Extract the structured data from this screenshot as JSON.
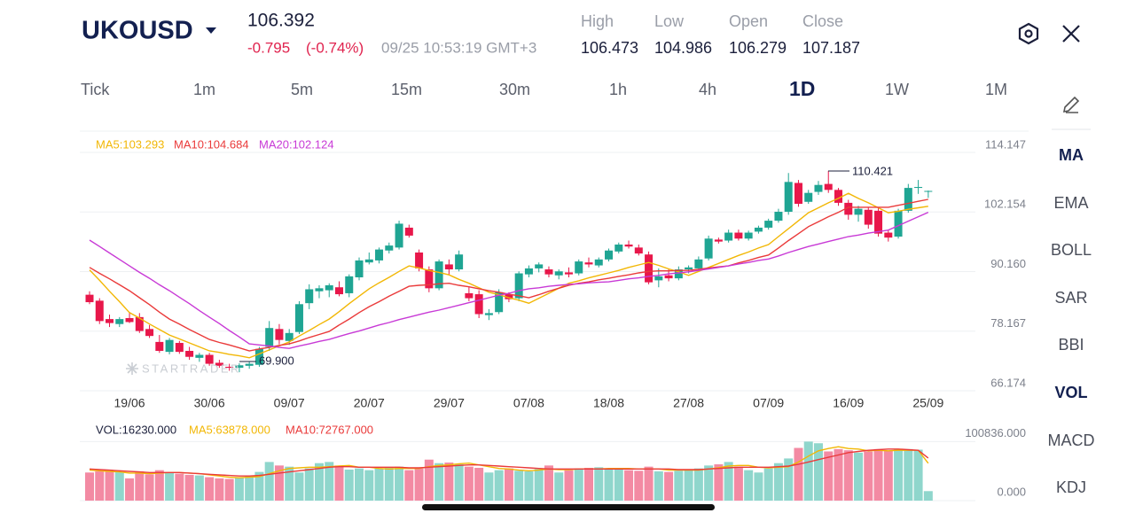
{
  "header": {
    "symbol": "UKOUSD",
    "price": "106.392",
    "change": "-0.795",
    "change_pct": "(-0.74%)",
    "time": "09/25 10:53:19 GMT+3",
    "stats": [
      {
        "label": "High",
        "value": "106.473"
      },
      {
        "label": "Low",
        "value": "104.986"
      },
      {
        "label": "Open",
        "value": "106.279"
      },
      {
        "label": "Close",
        "value": "107.187"
      }
    ]
  },
  "timeframes": [
    {
      "label": "Tick",
      "selected": false
    },
    {
      "label": "1m",
      "selected": false
    },
    {
      "label": "5m",
      "selected": false
    },
    {
      "label": "15m",
      "selected": false
    },
    {
      "label": "30m",
      "selected": false
    },
    {
      "label": "1h",
      "selected": false
    },
    {
      "label": "4h",
      "selected": false
    },
    {
      "label": "1D",
      "selected": true
    },
    {
      "label": "1W",
      "selected": false
    },
    {
      "label": "1M",
      "selected": false
    }
  ],
  "indicators": [
    {
      "label": "MA",
      "selected": true
    },
    {
      "label": "EMA",
      "selected": false
    },
    {
      "label": "BOLL",
      "selected": false
    },
    {
      "label": "SAR",
      "selected": false
    },
    {
      "label": "BBI",
      "selected": false
    },
    {
      "label": "VOL",
      "selected": true
    },
    {
      "label": "MACD",
      "selected": false
    },
    {
      "label": "KDJ",
      "selected": false
    }
  ],
  "chart_data": [
    {
      "type": "candlestick",
      "categories": [
        null,
        null,
        null,
        null,
        "19/06",
        null,
        null,
        null,
        null,
        null,
        null,
        null,
        "30/06",
        null,
        null,
        null,
        null,
        null,
        null,
        null,
        "09/07",
        null,
        null,
        null,
        null,
        null,
        null,
        null,
        "20/07",
        null,
        null,
        null,
        null,
        null,
        null,
        null,
        "29/07",
        null,
        null,
        null,
        null,
        null,
        null,
        null,
        "07/08",
        null,
        null,
        null,
        null,
        null,
        null,
        null,
        "18/08",
        null,
        null,
        null,
        null,
        null,
        null,
        null,
        "27/08",
        null,
        null,
        null,
        null,
        null,
        null,
        null,
        "07/09",
        null,
        null,
        null,
        null,
        null,
        null,
        null,
        "16/09",
        null,
        null,
        null,
        null,
        null,
        null,
        null,
        "25/09"
      ],
      "open": [
        85.5,
        84.3,
        80.6,
        79.6,
        80.8,
        81.0,
        78.6,
        76.0,
        74.0,
        75.8,
        74.2,
        72.8,
        73.4,
        71.8,
        71.0,
        70.8,
        71.2,
        71.4,
        75.0,
        78.6,
        76.2,
        78.0,
        83.8,
        86.2,
        86.4,
        87.0,
        85.8,
        89.0,
        92.0,
        92.4,
        94.4,
        95.0,
        99.0,
        94.0,
        90.6,
        86.8,
        91.6,
        90.6,
        85.8,
        85.6,
        81.4,
        82.0,
        85.6,
        84.8,
        89.6,
        90.8,
        90.6,
        89.4,
        90.0,
        89.8,
        92.0,
        91.4,
        92.6,
        94.2,
        95.6,
        95.0,
        93.6,
        88.4,
        89.4,
        88.8,
        90.6,
        90.8,
        92.8,
        96.6,
        96.4,
        98.0,
        96.8,
        98.2,
        99.0,
        100.4,
        102.2,
        108.0,
        104.2,
        106.2,
        107.8,
        106.6,
        104.0,
        101.6,
        102.6,
        102.4,
        98.0,
        97.2,
        102.4,
        107.0,
        106.279
      ],
      "high": [
        86.2,
        84.8,
        81.5,
        81.0,
        82.0,
        81.8,
        79.4,
        77.4,
        76.8,
        76.2,
        75.0,
        73.8,
        73.8,
        72.4,
        71.6,
        71.7,
        72.0,
        75.0,
        80.2,
        79.6,
        78.6,
        84.2,
        87.6,
        87.4,
        87.8,
        88.2,
        89.6,
        93.0,
        94.0,
        95.0,
        96.0,
        100.4,
        99.6,
        94.6,
        91.2,
        92.6,
        92.6,
        94.4,
        87.0,
        86.4,
        82.6,
        86.6,
        86.0,
        90.2,
        91.4,
        92.0,
        91.2,
        90.6,
        91.0,
        92.6,
        93.0,
        93.0,
        94.8,
        96.0,
        96.4,
        95.6,
        94.2,
        90.8,
        90.6,
        91.2,
        91.4,
        93.2,
        97.4,
        97.0,
        98.6,
        98.6,
        98.4,
        99.4,
        100.8,
        102.8,
        110.0,
        108.6,
        106.6,
        108.4,
        110.421,
        107.0,
        104.6,
        103.4,
        103.0,
        103.0,
        98.6,
        102.8,
        107.8,
        108.6,
        106.473
      ],
      "low": [
        83.6,
        79.6,
        79.0,
        79.0,
        79.8,
        77.8,
        76.8,
        73.8,
        73.5,
        73.6,
        72.4,
        72.0,
        71.2,
        70.8,
        70.2,
        69.9,
        70.6,
        71.0,
        74.2,
        75.5,
        75.4,
        77.6,
        82.6,
        84.8,
        85.0,
        85.2,
        85.0,
        88.4,
        91.6,
        91.8,
        93.8,
        94.6,
        97.0,
        90.2,
        86.0,
        86.4,
        89.4,
        90.2,
        84.2,
        80.8,
        80.4,
        81.6,
        84.0,
        84.2,
        89.0,
        90.0,
        89.0,
        88.6,
        89.0,
        89.4,
        91.0,
        91.0,
        92.2,
        93.8,
        94.8,
        93.4,
        87.6,
        87.0,
        88.2,
        88.4,
        89.8,
        90.4,
        92.4,
        95.8,
        96.0,
        96.4,
        96.4,
        97.8,
        98.6,
        100.0,
        101.6,
        103.2,
        103.8,
        105.6,
        106.0,
        103.4,
        100.6,
        100.2,
        98.8,
        97.2,
        96.2,
        96.8,
        102.0,
        105.8,
        104.986
      ],
      "close": [
        84.0,
        80.2,
        79.8,
        80.6,
        80.0,
        78.2,
        77.2,
        74.2,
        76.4,
        74.0,
        73.0,
        73.4,
        71.6,
        71.2,
        70.8,
        71.3,
        71.6,
        74.6,
        78.8,
        76.4,
        77.8,
        83.6,
        86.6,
        86.8,
        87.4,
        85.6,
        89.2,
        92.4,
        92.6,
        94.6,
        95.4,
        99.8,
        97.4,
        90.8,
        86.8,
        92.2,
        90.6,
        93.6,
        84.8,
        81.6,
        81.8,
        86.0,
        84.6,
        89.8,
        90.8,
        91.6,
        89.6,
        90.2,
        89.6,
        92.2,
        91.6,
        92.6,
        94.4,
        95.6,
        95.2,
        93.8,
        88.0,
        89.2,
        88.8,
        90.6,
        91.0,
        92.6,
        96.8,
        96.2,
        98.0,
        96.8,
        98.0,
        99.0,
        100.4,
        102.2,
        108.2,
        103.8,
        106.0,
        107.6,
        106.6,
        104.0,
        101.6,
        102.8,
        99.6,
        97.8,
        97.0,
        102.4,
        107.0,
        107.187,
        106.392
      ],
      "up_color": "#1fa593",
      "down_color": "#e8174a",
      "series": [
        {
          "name": "MA5:103.293",
          "color": "#f2b705",
          "values": [
            90.5,
            88.4,
            86.2,
            84.1,
            81.9,
            80.8,
            79.6,
            78.5,
            77.4,
            76.6,
            75.8,
            75.0,
            74.2,
            73.9,
            73.5,
            73.2,
            72.8,
            73.6,
            74.4,
            75.2,
            76.0,
            77.2,
            78.3,
            79.5,
            80.6,
            82.1,
            83.7,
            85.2,
            86.7,
            87.9,
            89.0,
            90.2,
            91.3,
            90.9,
            90.4,
            90.0,
            89.5,
            88.6,
            87.8,
            86.9,
            86.0,
            85.5,
            84.9,
            84.4,
            83.8,
            84.8,
            85.8,
            86.8,
            87.8,
            88.3,
            88.9,
            89.4,
            89.9,
            90.4,
            91.0,
            91.5,
            92.0,
            91.4,
            90.7,
            90.1,
            89.4,
            90.2,
            91.0,
            91.8,
            92.6,
            93.4,
            94.1,
            94.9,
            95.6,
            97.2,
            98.8,
            100.4,
            102.0,
            103.0,
            104.0,
            104.9,
            105.9,
            104.9,
            104.0,
            103.0,
            102.0,
            102.3,
            102.7,
            103.0,
            103.3
          ]
        },
        {
          "name": "MA10:104.684",
          "color": "#ea3a3a",
          "values": [
            91.0,
            89.8,
            88.7,
            87.5,
            86.3,
            84.9,
            83.5,
            82.0,
            80.6,
            79.6,
            78.5,
            77.5,
            76.5,
            75.9,
            75.4,
            74.8,
            74.2,
            74.6,
            74.9,
            75.3,
            75.6,
            76.2,
            76.9,
            77.5,
            78.1,
            79.4,
            80.6,
            81.9,
            83.1,
            84.1,
            85.2,
            86.2,
            87.2,
            87.4,
            87.5,
            87.7,
            87.8,
            87.4,
            87.1,
            86.7,
            86.3,
            86.0,
            85.6,
            85.3,
            84.9,
            85.5,
            86.2,
            86.8,
            87.4,
            87.8,
            88.1,
            88.5,
            88.8,
            89.2,
            89.5,
            89.9,
            90.2,
            90.3,
            90.3,
            90.4,
            90.4,
            90.6,
            90.9,
            91.1,
            91.3,
            91.9,
            92.4,
            93.0,
            93.5,
            94.9,
            96.4,
            97.8,
            99.2,
            100.2,
            101.2,
            102.1,
            103.1,
            103.1,
            103.1,
            103.1,
            103.1,
            103.5,
            103.9,
            104.3,
            104.7
          ]
        },
        {
          "name": "MA20:102.124",
          "color": "#c83ad6",
          "values": [
            96.5,
            95.2,
            93.9,
            92.6,
            91.3,
            90.0,
            88.8,
            87.5,
            86.3,
            85.0,
            83.7,
            82.3,
            81.0,
            79.7,
            78.3,
            77.0,
            75.6,
            75.4,
            75.2,
            74.9,
            74.7,
            75.2,
            75.6,
            76.1,
            76.5,
            77.1,
            77.7,
            78.2,
            78.8,
            79.4,
            79.9,
            80.5,
            81.0,
            81.5,
            82.0,
            82.4,
            82.9,
            83.4,
            83.9,
            84.4,
            84.9,
            85.4,
            85.8,
            86.3,
            86.7,
            86.9,
            87.2,
            87.4,
            87.6,
            87.7,
            87.9,
            88.0,
            88.1,
            88.4,
            88.7,
            88.9,
            89.2,
            89.4,
            89.7,
            89.9,
            90.1,
            90.4,
            90.7,
            91.0,
            91.3,
            91.7,
            92.0,
            92.4,
            92.7,
            93.3,
            94.0,
            94.6,
            95.2,
            95.7,
            96.2,
            96.7,
            97.2,
            97.5,
            97.9,
            98.2,
            98.5,
            99.4,
            100.3,
            101.2,
            102.1
          ]
        }
      ],
      "ylim": [
        66.174,
        114.147
      ],
      "yticks": [
        114.147,
        102.154,
        {
          "value": 90.16,
          "label": "90.160"
        },
        78.167,
        66.174
      ],
      "grid": true,
      "annotations": [
        "110.421",
        "69.900"
      ],
      "watermark": "STARTRADER"
    },
    {
      "type": "bar",
      "label": "VOL:16230.000",
      "values": [
        48000,
        50000,
        51000,
        49000,
        38000,
        50000,
        45000,
        52000,
        48000,
        46000,
        44000,
        43000,
        40000,
        38000,
        37000,
        39000,
        42000,
        49000,
        66000,
        60000,
        58000,
        48000,
        55000,
        64000,
        66000,
        60000,
        53000,
        55000,
        52000,
        55000,
        57000,
        58000,
        52000,
        55000,
        70000,
        64000,
        65000,
        62000,
        58000,
        56000,
        48000,
        52000,
        55000,
        51000,
        50000,
        54000,
        60000,
        48000,
        52000,
        55000,
        56000,
        57000,
        55000,
        54000,
        52000,
        51000,
        58000,
        50000,
        49000,
        51000,
        53000,
        55000,
        60000,
        62000,
        66000,
        58000,
        52000,
        48000,
        55000,
        64000,
        72000,
        90000,
        100836,
        98000,
        84000,
        88000,
        86000,
        82000,
        84000,
        88000,
        85000,
        87000,
        88000,
        87000,
        16230
      ],
      "up_color": "#8fd6cc",
      "down_color": "#f38aa3",
      "series": [
        {
          "name": "MA5:63878.000",
          "color": "#f2b705",
          "values": [
            52000,
            51000,
            50000,
            49000,
            47000,
            47000,
            46000,
            47000,
            48000,
            48000,
            47000,
            46000,
            44000,
            42000,
            40000,
            39000,
            40000,
            41000,
            46000,
            51000,
            55000,
            56000,
            57000,
            57000,
            58000,
            59000,
            60000,
            57000,
            57000,
            55000,
            54000,
            55000,
            55000,
            55000,
            58000,
            60000,
            61000,
            63000,
            64000,
            61000,
            58000,
            55000,
            54000,
            52000,
            51000,
            52000,
            54000,
            53000,
            53000,
            54000,
            54000,
            54000,
            55000,
            55000,
            55000,
            54000,
            54000,
            54000,
            52000,
            52000,
            52000,
            52000,
            54000,
            56000,
            59000,
            60000,
            60000,
            57000,
            56000,
            57000,
            58000,
            66000,
            76000,
            85000,
            89000,
            92000,
            89000,
            88000,
            85000,
            86000,
            85000,
            86000,
            86000,
            86000,
            63878
          ]
        },
        {
          "name": "MA10:72767.000",
          "color": "#ea3a3a",
          "values": [
            54000,
            53000,
            52000,
            51000,
            50000,
            49000,
            48000,
            48000,
            48000,
            48000,
            47000,
            46000,
            45000,
            44000,
            43000,
            42000,
            42000,
            43000,
            45000,
            47000,
            49000,
            51000,
            53000,
            55000,
            57000,
            58000,
            58000,
            57000,
            57000,
            57000,
            57000,
            57000,
            56000,
            56000,
            57000,
            58000,
            59000,
            60000,
            61000,
            61000,
            60000,
            59000,
            58000,
            57000,
            56000,
            55000,
            54000,
            54000,
            54000,
            54000,
            54000,
            54000,
            54000,
            54000,
            54000,
            54000,
            54000,
            54000,
            54000,
            53000,
            53000,
            53000,
            54000,
            55000,
            56000,
            57000,
            57000,
            57000,
            57000,
            58000,
            59000,
            62000,
            66000,
            70000,
            74000,
            78000,
            82000,
            84000,
            86000,
            87000,
            88000,
            88000,
            87000,
            86000,
            72767
          ]
        }
      ],
      "ylim": [
        0,
        115000
      ],
      "yticks": [
        {
          "value": 100836,
          "label": "100836.000"
        },
        {
          "value": 0,
          "label": "0.000"
        }
      ],
      "grid": true
    }
  ]
}
